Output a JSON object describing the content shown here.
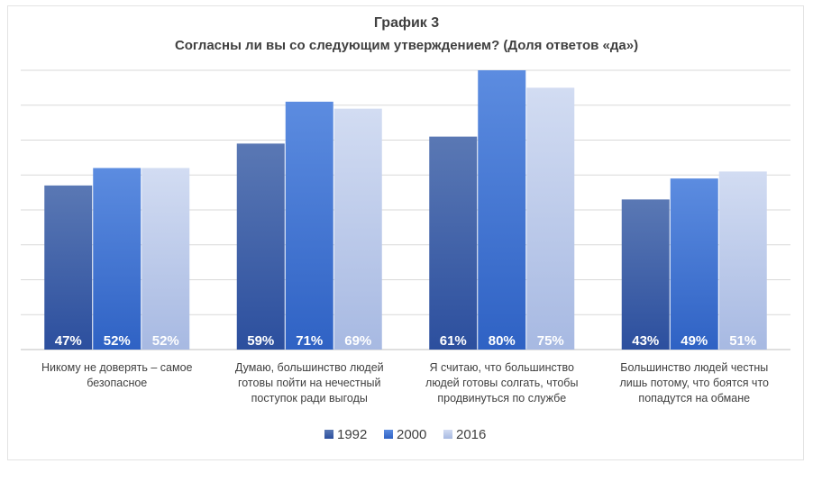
{
  "chart_data": {
    "type": "bar",
    "title": "График 3",
    "subtitle": "Согласны ли вы со следующим утверждением?  (Доля ответов «да»)",
    "categories": [
      [
        "Никому не доверять – самое",
        "безопасное"
      ],
      [
        "Думаю, большинство людей",
        "готовы пойти на нечестный",
        "поступок ради выгоды"
      ],
      [
        "Я считаю, что большинство",
        "людей готовы солгать, чтобы",
        "продвинуться по службе"
      ],
      [
        "Большинство людей честны",
        "лишь потому, что боятся что",
        "попадутся на обмане"
      ]
    ],
    "series": [
      {
        "name": "1992",
        "values": [
          47,
          59,
          61,
          43
        ],
        "labels": [
          "47%",
          "59%",
          "61%",
          "43%"
        ],
        "color_top": "#5a78b4",
        "color_bottom": "#2c4f9e"
      },
      {
        "name": "2000",
        "values": [
          52,
          71,
          80,
          49
        ],
        "labels": [
          "52%",
          "71%",
          "80%",
          "49%"
        ],
        "color_top": "#5c8ce0",
        "color_bottom": "#2f62c4"
      },
      {
        "name": "2016",
        "values": [
          52,
          69,
          75,
          51
        ],
        "labels": [
          "52%",
          "69%",
          "75%",
          "51%"
        ],
        "color_top": "#d2dcf2",
        "color_bottom": "#a7b9e2"
      }
    ],
    "ylim": [
      0,
      80
    ],
    "grid": true,
    "legend": "bottom",
    "xlabel": "",
    "ylabel": ""
  }
}
